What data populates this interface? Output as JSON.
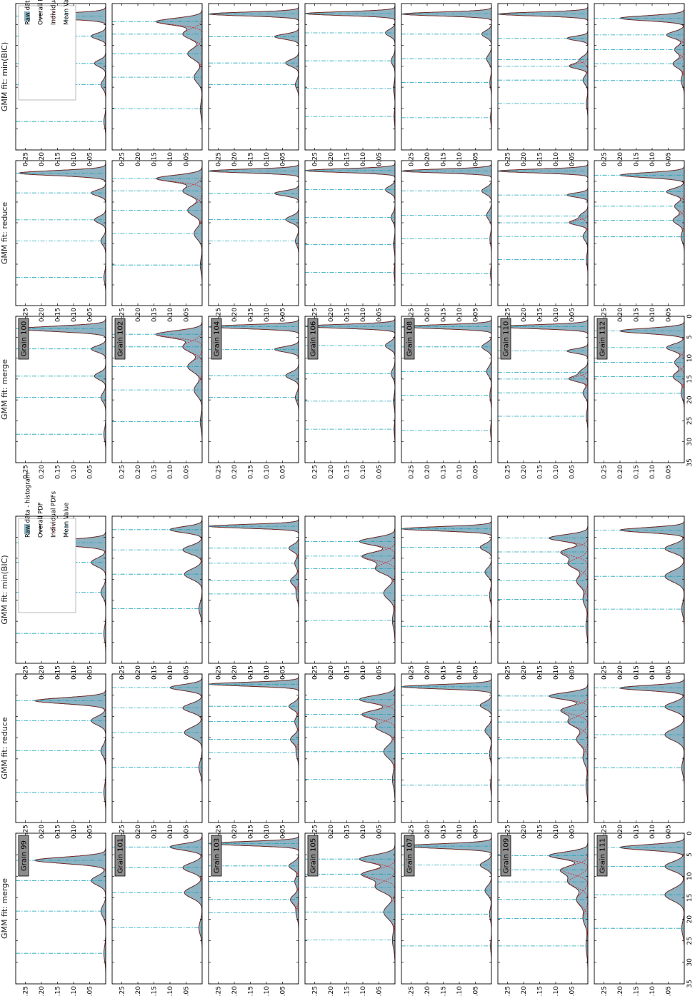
{
  "figure": {
    "column_titles": [
      "GMM fit: min(BIC)",
      "GMM fit: reduce",
      "GMM fit: merge"
    ],
    "legend": [
      "Raw data - histogram",
      "Overall PDF",
      "Individual PDFs",
      "Mean Value"
    ],
    "colors": {
      "histogram": "#8fb3c3",
      "overall_pdf": "#222222",
      "individual_pdf": "#d62728",
      "mean_value": "#17a3b8",
      "label_box": "#8c8c8c"
    }
  },
  "chart_data": [
    {
      "type": "area",
      "block": "top",
      "grains": [
        "Grain 100",
        "Grain 102",
        "Grain 104",
        "Grain 106",
        "Grain 108",
        "Grain 110",
        "Grain 112"
      ],
      "x_ticks": [
        0,
        5,
        10,
        15,
        20,
        25,
        30,
        35
      ],
      "y_ticks": [
        0.05,
        0.1,
        0.15,
        0.2,
        0.25
      ],
      "xlim": [
        0,
        35
      ],
      "ylim": [
        0,
        0.28
      ],
      "rows": [
        {
          "grain": "Grain 100",
          "peaks": [
            {
              "mu": 3.0,
              "h": 0.27,
              "w": 0.6
            },
            {
              "mu": 7.8,
              "h": 0.045,
              "w": 0.7
            },
            {
              "mu": 14.3,
              "h": 0.035,
              "w": 0.8
            },
            {
              "mu": 19.4,
              "h": 0.015,
              "w": 1.0
            },
            {
              "mu": 28.2,
              "h": 0.006,
              "w": 1.2
            }
          ],
          "means": [
            3.0,
            7.8,
            14.3,
            19.4,
            28.2
          ]
        },
        {
          "grain": "Grain 102",
          "peaks": [
            {
              "mu": 4.3,
              "h": 0.14,
              "w": 0.8
            },
            {
              "mu": 7.3,
              "h": 0.06,
              "w": 1.2
            },
            {
              "mu": 12.0,
              "h": 0.045,
              "w": 1.3
            },
            {
              "mu": 17.6,
              "h": 0.025,
              "w": 1.4
            },
            {
              "mu": 25.2,
              "h": 0.006,
              "w": 1.5
            }
          ],
          "means": [
            4.3,
            7.3,
            12.0,
            17.6,
            25.2
          ]
        },
        {
          "grain": "Grain 104",
          "peaks": [
            {
              "mu": 2.5,
              "h": 0.28,
              "w": 0.45
            },
            {
              "mu": 7.9,
              "h": 0.075,
              "w": 0.6
            },
            {
              "mu": 14.2,
              "h": 0.04,
              "w": 0.8
            },
            {
              "mu": 19.4,
              "h": 0.01,
              "w": 1.0
            }
          ],
          "means": [
            2.5,
            7.9,
            14.2,
            19.4
          ]
        },
        {
          "grain": "Grain 106",
          "peaks": [
            {
              "mu": 2.4,
              "h": 0.28,
              "w": 0.45
            },
            {
              "mu": 7.0,
              "h": 0.03,
              "w": 0.8
            },
            {
              "mu": 13.7,
              "h": 0.012,
              "w": 1.0
            },
            {
              "mu": 20.3,
              "h": 0.005,
              "w": 1.2
            },
            {
              "mu": 27.0,
              "h": 0.003,
              "w": 1.2
            }
          ],
          "means": [
            2.4,
            7.0,
            13.7,
            20.3,
            27.0
          ]
        },
        {
          "grain": "Grain 108",
          "peaks": [
            {
              "mu": 2.5,
              "h": 0.28,
              "w": 0.45
            },
            {
              "mu": 7.3,
              "h": 0.03,
              "w": 0.8
            },
            {
              "mu": 13.2,
              "h": 0.015,
              "w": 1.0
            },
            {
              "mu": 18.9,
              "h": 0.005,
              "w": 1.2
            },
            {
              "mu": 27.3,
              "h": 0.003,
              "w": 1.2
            }
          ],
          "means": [
            2.5,
            7.3,
            13.2,
            18.9,
            27.3
          ]
        },
        {
          "grain": "Grain 110",
          "peaks": [
            {
              "mu": 2.5,
              "h": 0.28,
              "w": 0.45
            },
            {
              "mu": 8.3,
              "h": 0.065,
              "w": 0.5
            },
            {
              "mu": 13.4,
              "h": 0.025,
              "w": 0.8
            },
            {
              "mu": 15.0,
              "h": 0.055,
              "w": 0.6
            },
            {
              "mu": 18.3,
              "h": 0.015,
              "w": 1.0
            },
            {
              "mu": 23.9,
              "h": 0.005,
              "w": 1.2
            }
          ],
          "means": [
            2.5,
            8.3,
            13.4,
            15.0,
            18.3,
            23.9
          ]
        },
        {
          "grain": "Grain 112",
          "peaks": [
            {
              "mu": 3.5,
              "h": 0.2,
              "w": 0.6
            },
            {
              "mu": 7.5,
              "h": 0.055,
              "w": 0.8
            },
            {
              "mu": 11.0,
              "h": 0.03,
              "w": 1.0
            },
            {
              "mu": 14.4,
              "h": 0.035,
              "w": 1.0
            },
            {
              "mu": 18.4,
              "h": 0.01,
              "w": 1.2
            }
          ],
          "means": [
            3.5,
            7.5,
            11.0,
            14.4,
            18.4
          ]
        }
      ]
    },
    {
      "type": "area",
      "block": "bottom",
      "grains": [
        "Grain 99",
        "Grain 101",
        "Grain 103",
        "Grain 105",
        "Grain 107",
        "Grain 109",
        "Grain 111"
      ],
      "x_ticks": [
        0,
        5,
        10,
        15,
        20,
        25,
        30,
        35
      ],
      "y_ticks": [
        0.05,
        0.1,
        0.15,
        0.2,
        0.25
      ],
      "xlim": [
        0,
        35
      ],
      "ylim": [
        0,
        0.28
      ],
      "rows": [
        {
          "grain": "Grain 99",
          "peaks": [
            {
              "mu": 6.3,
              "h": 0.22,
              "w": 0.7
            },
            {
              "mu": 11.0,
              "h": 0.045,
              "w": 1.0
            },
            {
              "mu": 18.1,
              "h": 0.015,
              "w": 1.2
            },
            {
              "mu": 27.9,
              "h": 0.006,
              "w": 1.5
            }
          ],
          "means": [
            6.3,
            11.0,
            18.1,
            27.9
          ]
        },
        {
          "grain": "Grain 101",
          "peaks": [
            {
              "mu": 3.2,
              "h": 0.1,
              "w": 0.7
            },
            {
              "mu": 8.0,
              "h": 0.06,
              "w": 1.0
            },
            {
              "mu": 13.8,
              "h": 0.055,
              "w": 1.2
            },
            {
              "mu": 22.0,
              "h": 0.01,
              "w": 1.5
            }
          ],
          "means": [
            3.2,
            8.0,
            13.8,
            22.0
          ]
        },
        {
          "grain": "Grain 103",
          "peaks": [
            {
              "mu": 2.4,
              "h": 0.28,
              "w": 0.45
            },
            {
              "mu": 7.6,
              "h": 0.03,
              "w": 0.8
            },
            {
              "mu": 11.2,
              "h": 0.012,
              "w": 1.0
            },
            {
              "mu": 15.4,
              "h": 0.025,
              "w": 1.0
            },
            {
              "mu": 18.5,
              "h": 0.008,
              "w": 1.2
            }
          ],
          "means": [
            2.4,
            7.6,
            11.2,
            15.4,
            18.5
          ]
        },
        {
          "grain": "Grain 105",
          "peaks": [
            {
              "mu": 6.0,
              "h": 0.11,
              "w": 0.9
            },
            {
              "mu": 9.5,
              "h": 0.1,
              "w": 1.0
            },
            {
              "mu": 12.5,
              "h": 0.06,
              "w": 1.2
            },
            {
              "mu": 18.3,
              "h": 0.035,
              "w": 1.5
            },
            {
              "mu": 24.8,
              "h": 0.008,
              "w": 1.8
            }
          ],
          "means": [
            6.0,
            9.5,
            12.5,
            18.3,
            24.8
          ]
        },
        {
          "grain": "Grain 107",
          "peaks": [
            {
              "mu": 3.0,
              "h": 0.28,
              "w": 0.5
            },
            {
              "mu": 7.4,
              "h": 0.035,
              "w": 0.8
            },
            {
              "mu": 13.3,
              "h": 0.02,
              "w": 1.0
            },
            {
              "mu": 18.8,
              "h": 0.006,
              "w": 1.2
            },
            {
              "mu": 26.2,
              "h": 0.003,
              "w": 1.2
            }
          ],
          "means": [
            3.0,
            7.4,
            13.3,
            18.8,
            26.2
          ]
        },
        {
          "grain": "Grain 109",
          "peaks": [
            {
              "mu": 5.2,
              "h": 0.12,
              "w": 0.8
            },
            {
              "mu": 8.5,
              "h": 0.08,
              "w": 1.0
            },
            {
              "mu": 11.3,
              "h": 0.06,
              "w": 1.2
            },
            {
              "mu": 15.4,
              "h": 0.035,
              "w": 1.4
            },
            {
              "mu": 19.8,
              "h": 0.015,
              "w": 1.5
            },
            {
              "mu": 26.2,
              "h": 0.006,
              "w": 1.8
            }
          ],
          "means": [
            5.2,
            8.5,
            11.3,
            15.4,
            19.8,
            26.2
          ]
        },
        {
          "grain": "Grain 111",
          "peaks": [
            {
              "mu": 3.3,
              "h": 0.2,
              "w": 0.6
            },
            {
              "mu": 7.7,
              "h": 0.06,
              "w": 1.0
            },
            {
              "mu": 14.3,
              "h": 0.06,
              "w": 1.3
            },
            {
              "mu": 22.1,
              "h": 0.008,
              "w": 1.5
            }
          ],
          "means": [
            3.3,
            7.7,
            14.3,
            22.1
          ]
        }
      ]
    }
  ]
}
